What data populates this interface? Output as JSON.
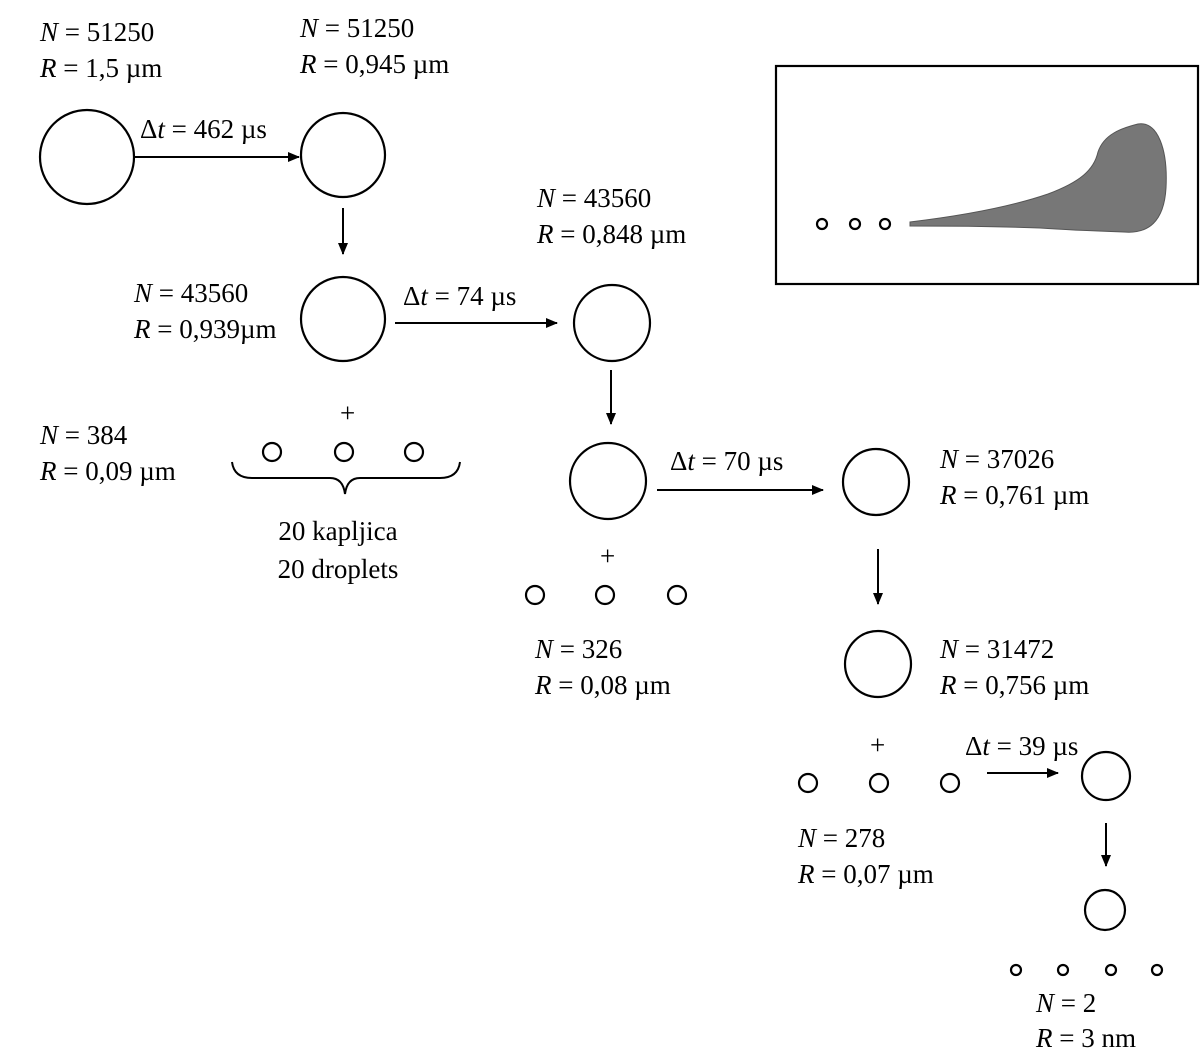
{
  "stages": [
    {
      "id": "s1",
      "n": "51250",
      "r": "1,5 µm"
    },
    {
      "id": "s2",
      "n": "51250",
      "r": "0,945 µm"
    },
    {
      "id": "s3",
      "n": "43560",
      "r": "0,939µm"
    },
    {
      "id": "s4",
      "n": "43560",
      "r": "0,848 µm"
    },
    {
      "id": "s5",
      "n": "37026",
      "r": "0,761 µm"
    },
    {
      "id": "s6",
      "n": "31472",
      "r": "0,756 µm"
    }
  ],
  "satellites": [
    {
      "id": "sat1",
      "n": "384",
      "r": "0,09 µm"
    },
    {
      "id": "sat2",
      "n": "326",
      "r": "0,08 µm"
    },
    {
      "id": "sat3",
      "n": "278",
      "r": "0,07 µm"
    },
    {
      "id": "sat4",
      "n": "2",
      "r": "3 nm"
    }
  ],
  "intervals": [
    "462 µs",
    "74 µs",
    "70 µs",
    "39 µs"
  ],
  "droplet_count": {
    "line1": "20 kapljica",
    "line2": "20 droplets"
  },
  "plus": "+",
  "symbols": {
    "n": "N",
    "r": "R",
    "t": "t",
    "delta": "Δ",
    "eq": " = "
  },
  "inset_fill": "#777777"
}
